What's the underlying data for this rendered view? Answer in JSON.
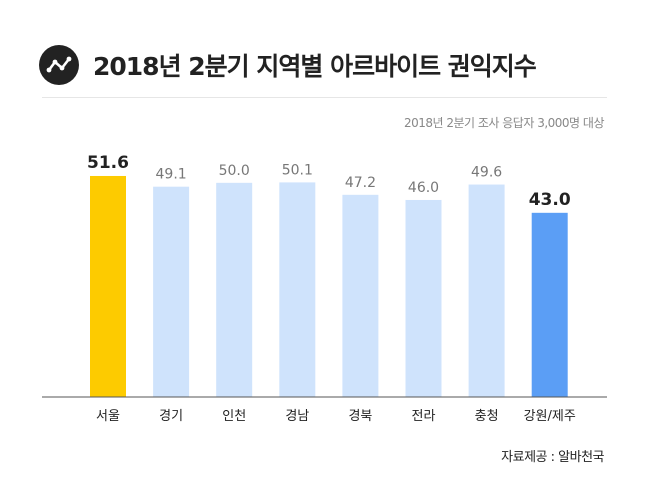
{
  "header": {
    "title": "2018년 2분기 지역별 아르바이트 권익지수",
    "logo_icon": "trend-line-icon"
  },
  "subtitle": "2018년 2분기 조사 응답자 3,000명 대상",
  "source": "자료제공 : 알바천국",
  "colors": {
    "highest": "#FDCB00",
    "lowest": "#5B9EF5",
    "default": "#CFE3FC",
    "label_default": "#777777",
    "label_emphasis": "#222222",
    "axis": "#555555"
  },
  "chart_data": {
    "type": "bar",
    "categories": [
      "서울",
      "경기",
      "인천",
      "경남",
      "경북",
      "전라",
      "충청",
      "강원/제주"
    ],
    "values": [
      51.6,
      49.1,
      50.0,
      50.1,
      47.2,
      46.0,
      49.6,
      43.0
    ],
    "value_labels": [
      "51.6",
      "49.1",
      "50.0",
      "50.1",
      "47.2",
      "46.0",
      "49.6",
      "43.0"
    ],
    "highlight": {
      "max_index": 0,
      "min_index": 7
    },
    "ylim": [
      0,
      60
    ],
    "grid": false,
    "title": "2018년 2분기 지역별 아르바이트 권익지수",
    "xlabel": "",
    "ylabel": ""
  }
}
